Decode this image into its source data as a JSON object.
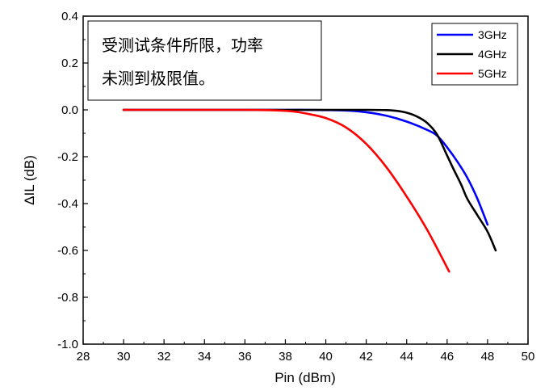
{
  "chart_data": {
    "type": "line",
    "xlabel": "Pin (dBm)",
    "ylabel": "ΔIL (dB)",
    "xlim": [
      28,
      50
    ],
    "ylim": [
      -1.0,
      0.4
    ],
    "xticks": [
      28,
      30,
      32,
      34,
      36,
      38,
      40,
      42,
      44,
      46,
      48,
      50
    ],
    "yticks": [
      -1.0,
      -0.8,
      -0.6,
      -0.4,
      -0.2,
      0.0,
      0.2,
      0.4
    ],
    "xtick_labels": [
      "28",
      "30",
      "32",
      "34",
      "36",
      "38",
      "40",
      "42",
      "44",
      "46",
      "48",
      "50"
    ],
    "ytick_labels": [
      "-1.0",
      "-0.8",
      "-0.6",
      "-0.4",
      "-0.2",
      "0.0",
      "0.2",
      "0.4"
    ],
    "grid": false,
    "legend_position": "top-right",
    "annotation": {
      "lines": [
        "受测试条件所限，功率",
        "未测到极限值。"
      ]
    },
    "series": [
      {
        "name": "3GHz",
        "color": "#0000ff",
        "x": [
          30,
          32,
          34,
          36,
          38,
          39,
          40,
          41,
          42,
          43,
          44,
          45,
          45.5,
          46,
          46.5,
          47,
          47.5,
          48
        ],
        "y": [
          0,
          0,
          0,
          0,
          0,
          0,
          -0.001,
          -0.003,
          -0.01,
          -0.025,
          -0.05,
          -0.085,
          -0.11,
          -0.16,
          -0.22,
          -0.29,
          -0.38,
          -0.49
        ]
      },
      {
        "name": "4GHz",
        "color": "#000000",
        "x": [
          30,
          32,
          34,
          36,
          38,
          40,
          42,
          43,
          43.5,
          44,
          44.5,
          45,
          45.5,
          46,
          46.3,
          46.7,
          47,
          47.5,
          48,
          48.4
        ],
        "y": [
          0,
          0,
          0,
          0,
          0,
          0,
          0,
          -0.001,
          -0.004,
          -0.012,
          -0.028,
          -0.055,
          -0.105,
          -0.195,
          -0.25,
          -0.32,
          -0.38,
          -0.45,
          -0.52,
          -0.6
        ]
      },
      {
        "name": "5GHz",
        "color": "#ff0000",
        "x": [
          30,
          32,
          34,
          36,
          37,
          38,
          38.5,
          39,
          40,
          41,
          42,
          43,
          44,
          45,
          46.1
        ],
        "y": [
          0,
          0,
          0,
          0,
          -0.001,
          -0.004,
          -0.008,
          -0.015,
          -0.035,
          -0.075,
          -0.145,
          -0.245,
          -0.37,
          -0.51,
          -0.69
        ]
      }
    ]
  }
}
